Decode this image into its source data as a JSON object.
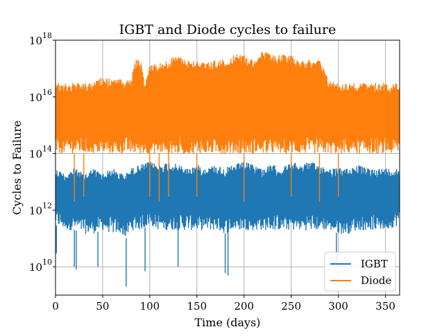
{
  "colors": {
    "igbt": "#1f77b4",
    "diode": "#ff7f0e",
    "grid": "#b0b0b0",
    "axis": "#000000",
    "background": "#ffffff"
  },
  "chart_data": {
    "type": "line",
    "title": "IGBT and Diode cycles to failure",
    "xlabel": "Time (days)",
    "ylabel": "Cycles to Failure",
    "xlim": [
      0,
      365
    ],
    "ylim": [
      1000000000.0,
      1e+18
    ],
    "yscale": "log",
    "grid": true,
    "legend_position": "bottom-right",
    "x_ticks": [
      0,
      50,
      100,
      150,
      200,
      250,
      300,
      350
    ],
    "x_tick_labels": [
      "0",
      "50",
      "100",
      "150",
      "200",
      "250",
      "300",
      "350"
    ],
    "y_ticks": [
      10000000000.0,
      1000000000000.0,
      100000000000000.0,
      1e+16,
      1e+18
    ],
    "y_tick_labels": [
      {
        "base": "10",
        "exp": "10"
      },
      {
        "base": "10",
        "exp": "12"
      },
      {
        "base": "10",
        "exp": "14"
      },
      {
        "base": "10",
        "exp": "16"
      },
      {
        "base": "10",
        "exp": "18"
      }
    ],
    "series": [
      {
        "name": "IGBT",
        "color": "#1f77b4",
        "envelope_x": [
          0,
          10,
          20,
          30,
          40,
          50,
          60,
          70,
          75,
          80,
          90,
          100,
          110,
          120,
          130,
          140,
          150,
          160,
          170,
          180,
          190,
          200,
          210,
          220,
          230,
          240,
          250,
          260,
          270,
          280,
          290,
          300,
          310,
          320,
          330,
          340,
          350,
          365
        ],
        "upper_envelope": [
          30000000000000.0,
          20000000000000.0,
          30000000000000.0,
          20000000000000.0,
          30000000000000.0,
          20000000000000.0,
          30000000000000.0,
          20000000000000.0,
          20000000000000.0,
          30000000000000.0,
          40000000000000.0,
          50000000000000.0,
          40000000000000.0,
          50000000000000.0,
          40000000000000.0,
          30000000000000.0,
          40000000000000.0,
          30000000000000.0,
          40000000000000.0,
          30000000000000.0,
          40000000000000.0,
          50000000000000.0,
          40000000000000.0,
          30000000000000.0,
          40000000000000.0,
          30000000000000.0,
          50000000000000.0,
          40000000000000.0,
          50000000000000.0,
          40000000000000.0,
          30000000000000.0,
          30000000000000.0,
          30000000000000.0,
          40000000000000.0,
          30000000000000.0,
          30000000000000.0,
          30000000000000.0,
          30000000000000.0
        ],
        "typical_low": [
          300000000000.0,
          200000000000.0,
          200000000000.0,
          150000000000.0,
          150000000000.0,
          200000000000.0,
          150000000000.0,
          150000000000.0,
          100000000000.0,
          200000000000.0,
          200000000000.0,
          300000000000.0,
          200000000000.0,
          200000000000.0,
          200000000000.0,
          200000000000.0,
          200000000000.0,
          200000000000.0,
          200000000000.0,
          150000000000.0,
          200000000000.0,
          200000000000.0,
          200000000000.0,
          200000000000.0,
          200000000000.0,
          200000000000.0,
          200000000000.0,
          200000000000.0,
          200000000000.0,
          200000000000.0,
          200000000000.0,
          150000000000.0,
          150000000000.0,
          200000000000.0,
          200000000000.0,
          200000000000.0,
          200000000000.0,
          300000000000.0
        ],
        "spikes_x": [
          1,
          20,
          22,
          45,
          75,
          95,
          130,
          180,
          183,
          298
        ],
        "spikes_y": [
          30000000000.0,
          10000000000.0,
          8000000000.0,
          10000000000.0,
          2000000000.0,
          7000000000.0,
          10000000000.0,
          6000000000.0,
          5000000000.0,
          12000000000.0
        ]
      },
      {
        "name": "Diode",
        "color": "#ff7f0e",
        "envelope_x": [
          0,
          10,
          20,
          30,
          40,
          50,
          60,
          70,
          80,
          85,
          90,
          95,
          100,
          110,
          120,
          130,
          140,
          150,
          160,
          170,
          180,
          190,
          200,
          210,
          220,
          230,
          240,
          250,
          260,
          270,
          280,
          290,
          300,
          310,
          320,
          330,
          340,
          350,
          365
        ],
        "upper_envelope": [
          3e+16,
          3e+16,
          3e+16,
          3e+16,
          3e+16,
          5e+16,
          4e+16,
          4e+16,
          4e+16,
          2e+17,
          2e+17,
          3e+16,
          1.5e+17,
          1.5e+17,
          2e+17,
          3e+17,
          2e+17,
          2e+17,
          1.5e+17,
          2e+17,
          2e+17,
          3e+17,
          3e+17,
          2e+17,
          4e+17,
          3e+17,
          3e+17,
          3e+17,
          2e+17,
          2e+17,
          2e+17,
          4e+16,
          3e+16,
          3e+16,
          3e+16,
          3e+16,
          3e+16,
          3e+16,
          3e+16
        ],
        "typical_low": [
          100000000000000.0,
          100000000000000.0,
          100000000000000.0,
          100000000000000.0,
          100000000000000.0,
          100000000000000.0,
          100000000000000.0,
          100000000000000.0,
          100000000000000.0,
          100000000000000.0,
          100000000000000.0,
          100000000000000.0,
          100000000000000.0,
          100000000000000.0,
          100000000000000.0,
          100000000000000.0,
          100000000000000.0,
          100000000000000.0,
          100000000000000.0,
          100000000000000.0,
          100000000000000.0,
          100000000000000.0,
          100000000000000.0,
          100000000000000.0,
          100000000000000.0,
          100000000000000.0,
          100000000000000.0,
          100000000000000.0,
          100000000000000.0,
          100000000000000.0,
          100000000000000.0,
          100000000000000.0,
          100000000000000.0,
          100000000000000.0,
          100000000000000.0,
          100000000000000.0,
          100000000000000.0,
          100000000000000.0,
          100000000000000.0
        ],
        "spikes_x": [
          20,
          30,
          100,
          110,
          120,
          150,
          200,
          250,
          280,
          300
        ],
        "spikes_y": [
          2000000000000.0,
          3000000000000.0,
          3000000000000.0,
          2000000000000.0,
          3000000000000.0,
          3000000000000.0,
          2000000000000.0,
          3000000000000.0,
          2000000000000.0,
          3000000000000.0
        ]
      }
    ]
  }
}
